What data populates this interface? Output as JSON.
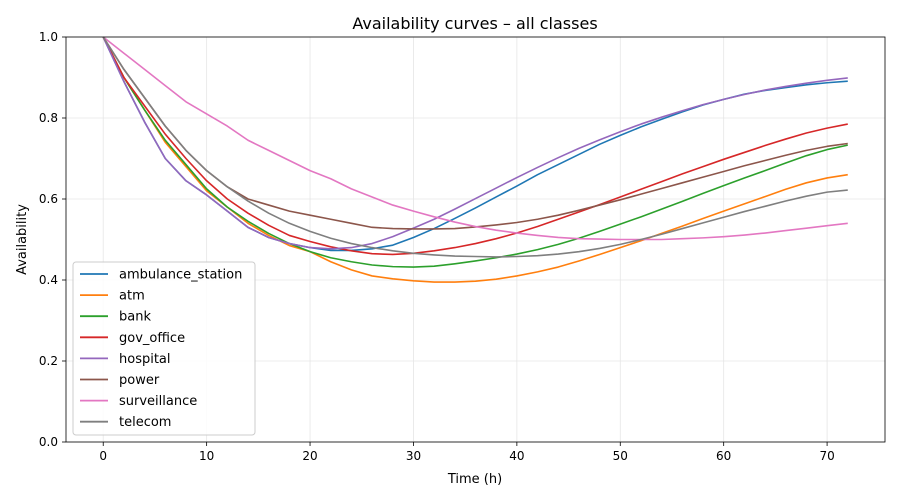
{
  "chart_data": {
    "type": "line",
    "title": "Availability curves – all classes",
    "xlabel": "Time (h)",
    "ylabel": "Availability",
    "xlim": [
      -3.6,
      75.6
    ],
    "ylim": [
      0.0,
      1.0
    ],
    "xticks": [
      0,
      10,
      20,
      30,
      40,
      50,
      60,
      70
    ],
    "yticks": [
      0.0,
      0.2,
      0.4,
      0.6,
      0.8,
      1.0
    ],
    "xtick_labels": [
      "0",
      "10",
      "20",
      "30",
      "40",
      "50",
      "60",
      "70"
    ],
    "ytick_labels": [
      "0.0",
      "0.2",
      "0.4",
      "0.6",
      "0.8",
      "1.0"
    ],
    "grid": true,
    "legend_position": "lower-left",
    "x": [
      0,
      2,
      4,
      6,
      8,
      10,
      12,
      14,
      16,
      18,
      20,
      22,
      24,
      26,
      28,
      30,
      32,
      34,
      36,
      38,
      40,
      42,
      44,
      46,
      48,
      50,
      52,
      54,
      56,
      58,
      60,
      62,
      64,
      66,
      68,
      70,
      72
    ],
    "series": [
      {
        "name": "ambulance_station",
        "color": "#1f77b4",
        "values": [
          1.0,
          0.89,
          0.79,
          0.7,
          0.645,
          0.61,
          0.57,
          0.53,
          0.505,
          0.49,
          0.48,
          0.473,
          0.473,
          0.477,
          0.486,
          0.505,
          0.527,
          0.552,
          0.578,
          0.605,
          0.632,
          0.66,
          0.685,
          0.71,
          0.735,
          0.757,
          0.778,
          0.797,
          0.815,
          0.832,
          0.846,
          0.859,
          0.868,
          0.875,
          0.882,
          0.887,
          0.891
        ]
      },
      {
        "name": "atm",
        "color": "#ff7f0e",
        "values": [
          1.0,
          0.9,
          0.82,
          0.74,
          0.68,
          0.62,
          0.58,
          0.54,
          0.51,
          0.485,
          0.47,
          0.445,
          0.425,
          0.41,
          0.403,
          0.398,
          0.395,
          0.395,
          0.397,
          0.402,
          0.41,
          0.42,
          0.432,
          0.447,
          0.463,
          0.48,
          0.497,
          0.515,
          0.533,
          0.552,
          0.57,
          0.588,
          0.606,
          0.624,
          0.64,
          0.652,
          0.66
        ]
      },
      {
        "name": "bank",
        "color": "#2ca02c",
        "values": [
          1.0,
          0.9,
          0.82,
          0.745,
          0.685,
          0.625,
          0.58,
          0.545,
          0.515,
          0.49,
          0.47,
          0.455,
          0.445,
          0.437,
          0.433,
          0.432,
          0.434,
          0.44,
          0.447,
          0.455,
          0.464,
          0.475,
          0.488,
          0.503,
          0.52,
          0.538,
          0.556,
          0.575,
          0.594,
          0.614,
          0.633,
          0.652,
          0.67,
          0.689,
          0.707,
          0.722,
          0.733
        ]
      },
      {
        "name": "gov_office",
        "color": "#d62728",
        "values": [
          1.0,
          0.9,
          0.83,
          0.76,
          0.7,
          0.645,
          0.6,
          0.565,
          0.535,
          0.51,
          0.495,
          0.482,
          0.472,
          0.465,
          0.463,
          0.466,
          0.472,
          0.48,
          0.49,
          0.502,
          0.516,
          0.532,
          0.55,
          0.568,
          0.586,
          0.605,
          0.624,
          0.643,
          0.662,
          0.68,
          0.698,
          0.715,
          0.732,
          0.748,
          0.763,
          0.775,
          0.785
        ]
      },
      {
        "name": "hospital",
        "color": "#9467bd",
        "values": [
          1.0,
          0.89,
          0.79,
          0.7,
          0.645,
          0.61,
          0.57,
          0.53,
          0.505,
          0.49,
          0.48,
          0.477,
          0.48,
          0.49,
          0.507,
          0.528,
          0.55,
          0.575,
          0.601,
          0.627,
          0.653,
          0.678,
          0.702,
          0.725,
          0.746,
          0.766,
          0.785,
          0.802,
          0.818,
          0.833,
          0.846,
          0.858,
          0.869,
          0.878,
          0.886,
          0.893,
          0.899
        ]
      },
      {
        "name": "power",
        "color": "#8c564b",
        "values": [
          1.0,
          0.92,
          0.85,
          0.78,
          0.72,
          0.67,
          0.63,
          0.6,
          0.585,
          0.57,
          0.56,
          0.55,
          0.54,
          0.53,
          0.527,
          0.526,
          0.526,
          0.527,
          0.531,
          0.536,
          0.542,
          0.55,
          0.56,
          0.572,
          0.585,
          0.598,
          0.612,
          0.626,
          0.64,
          0.654,
          0.668,
          0.682,
          0.695,
          0.708,
          0.72,
          0.73,
          0.737
        ]
      },
      {
        "name": "surveillance",
        "color": "#e377c2",
        "values": [
          1.0,
          0.96,
          0.92,
          0.88,
          0.84,
          0.81,
          0.78,
          0.745,
          0.72,
          0.695,
          0.67,
          0.65,
          0.625,
          0.605,
          0.585,
          0.57,
          0.556,
          0.543,
          0.532,
          0.523,
          0.516,
          0.51,
          0.505,
          0.502,
          0.501,
          0.5,
          0.5,
          0.5,
          0.502,
          0.504,
          0.507,
          0.511,
          0.516,
          0.522,
          0.528,
          0.534,
          0.54
        ]
      },
      {
        "name": "telecom",
        "color": "#7f7f7f",
        "values": [
          1.0,
          0.92,
          0.85,
          0.78,
          0.72,
          0.67,
          0.63,
          0.595,
          0.565,
          0.54,
          0.52,
          0.503,
          0.49,
          0.48,
          0.472,
          0.466,
          0.462,
          0.459,
          0.458,
          0.457,
          0.458,
          0.46,
          0.464,
          0.47,
          0.478,
          0.488,
          0.5,
          0.513,
          0.527,
          0.541,
          0.555,
          0.569,
          0.582,
          0.595,
          0.607,
          0.617,
          0.622
        ]
      }
    ]
  }
}
